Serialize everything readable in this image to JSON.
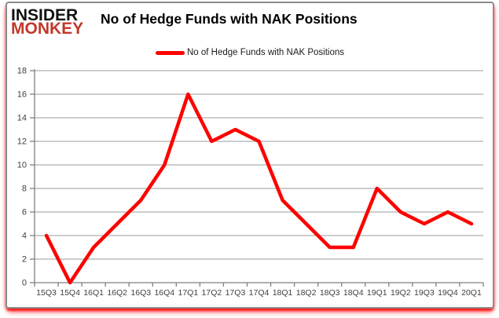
{
  "logo": {
    "line1": "INSIDER",
    "line2": "MONKEY"
  },
  "header": {
    "title": "No of Hedge Funds with NAK Positions"
  },
  "legend": {
    "label": "No of Hedge Funds with NAK Positions",
    "color": "#ff0000"
  },
  "chart_data": {
    "type": "line",
    "title": "No of Hedge Funds with NAK Positions",
    "categories": [
      "15Q3",
      "15Q4",
      "16Q1",
      "16Q2",
      "16Q3",
      "16Q4",
      "17Q1",
      "17Q2",
      "17Q3",
      "17Q4",
      "18Q1",
      "18Q2",
      "18Q3",
      "18Q4",
      "19Q1",
      "19Q2",
      "19Q3",
      "19Q4",
      "20Q1"
    ],
    "series": [
      {
        "name": "No of Hedge Funds with NAK Positions",
        "values": [
          4,
          0,
          3,
          5,
          7,
          10,
          16,
          12,
          13,
          12,
          7,
          5,
          3,
          3,
          8,
          6,
          5,
          6,
          5
        ]
      }
    ],
    "xlabel": "",
    "ylabel": "",
    "ylim": [
      0,
      18
    ],
    "ytick_step": 2,
    "grid": "on",
    "legend_position": "top",
    "line_color": "#ff0000",
    "grid_color": "#9b9b9b",
    "axis_color": "#808080",
    "tick_label_color": "#3f3f3f"
  }
}
